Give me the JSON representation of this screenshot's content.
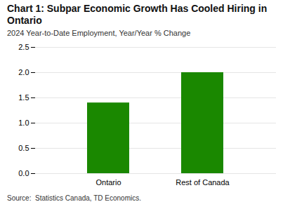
{
  "chart_data": {
    "type": "bar",
    "title": "Chart 1: Subpar Economic Growth Has Cooled Hiring in Ontario",
    "subtitle": "2024 Year-to-Date Employment, Year/Year % Change",
    "source": "Source:  Statistics Canada, TD Economics.",
    "categories": [
      "Ontario",
      "Rest of Canada"
    ],
    "values": [
      1.4,
      2.0
    ],
    "color": "#1a8800",
    "ylim": [
      0,
      2.5
    ],
    "yticks": [
      {
        "value": 0,
        "label": "0.0"
      },
      0.5,
      {
        "value": 1,
        "label": "1.0"
      },
      1.5,
      {
        "value": 2,
        "label": "2.0"
      },
      2.5
    ],
    "grid": true
  }
}
